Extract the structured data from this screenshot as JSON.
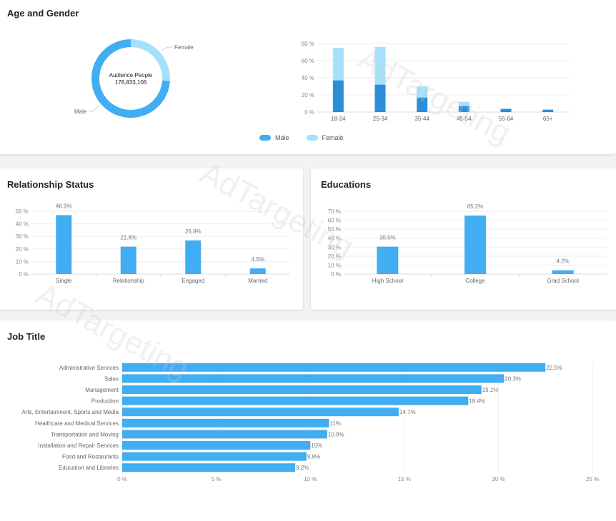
{
  "colors": {
    "male": "#41adf2",
    "female": "#a6e1fb",
    "male_dark": "#2b8ed6",
    "bar": "#41adf2"
  },
  "watermark": "AdTargeting",
  "age_gender": {
    "title": "Age and Gender",
    "donut": {
      "center_title": "Audience People",
      "center_value": "178,833,106",
      "slices": [
        {
          "label": "Female",
          "value": 26
        },
        {
          "label": "Male",
          "value": 74
        }
      ]
    },
    "legend": {
      "male": "Male",
      "female": "Female"
    }
  },
  "relationship": {
    "title": "Relationship Status"
  },
  "educations": {
    "title": "Educations"
  },
  "job_title": {
    "title": "Job Title"
  },
  "chart_data": [
    {
      "type": "pie",
      "title": "Age and Gender",
      "labels": [
        "Female",
        "Male"
      ],
      "values": [
        26,
        74
      ]
    },
    {
      "type": "bar",
      "stacked": true,
      "categories": [
        "18-24",
        "25-34",
        "35-44",
        "45-54",
        "55-64",
        "65+"
      ],
      "series": [
        {
          "name": "Male",
          "values": [
            37,
            32,
            17,
            7,
            3.5,
            2.5
          ]
        },
        {
          "name": "Female",
          "values": [
            38,
            44,
            13,
            5,
            1,
            1
          ]
        }
      ],
      "ylim": [
        0,
        80
      ],
      "yticks": [
        "0 %",
        "20 %",
        "40 %",
        "60 %",
        "80 %"
      ],
      "legend": "bottom"
    },
    {
      "type": "bar",
      "title": "Relationship Status",
      "categories": [
        "Single",
        "Relationship",
        "Engaged",
        "Married"
      ],
      "values": [
        46.9,
        21.8,
        26.8,
        4.5
      ],
      "value_labels": [
        "46.9%",
        "21.8%",
        "26.8%",
        "4.5%"
      ],
      "ylim": [
        0,
        50
      ],
      "yticks": [
        "0 %",
        "10 %",
        "20 %",
        "30 %",
        "40 %",
        "50 %"
      ]
    },
    {
      "type": "bar",
      "title": "Educations",
      "categories": [
        "High School",
        "College",
        "Grad School"
      ],
      "values": [
        30.5,
        65.2,
        4.2
      ],
      "value_labels": [
        "30.5%",
        "65.2%",
        "4.2%"
      ],
      "ylim": [
        0,
        70
      ],
      "yticks": [
        "0 %",
        "10 %",
        "20 %",
        "30 %",
        "40 %",
        "50 %",
        "60 %",
        "70 %"
      ]
    },
    {
      "type": "bar",
      "orientation": "horizontal",
      "title": "Job Title",
      "categories": [
        "Administrative Services",
        "Sales",
        "Management",
        "Production",
        "Arts, Entertainment, Sports and Media",
        "Healthcare and Medical Services",
        "Transportation and Moving",
        "Installation and Repair Services",
        "Food and Restaurants",
        "Education and Libraries"
      ],
      "values": [
        22.5,
        20.3,
        19.1,
        18.4,
        14.7,
        11,
        10.9,
        10,
        9.8,
        9.2
      ],
      "value_labels": [
        "22.5%",
        "20.3%",
        "19.1%",
        "18.4%",
        "14.7%",
        "11%",
        "10.9%",
        "10%",
        "9.8%",
        "9.2%"
      ],
      "xlim": [
        0,
        25
      ],
      "xticks": [
        "0 %",
        "5 %",
        "10 %",
        "15 %",
        "20 %",
        "25 %"
      ]
    }
  ]
}
